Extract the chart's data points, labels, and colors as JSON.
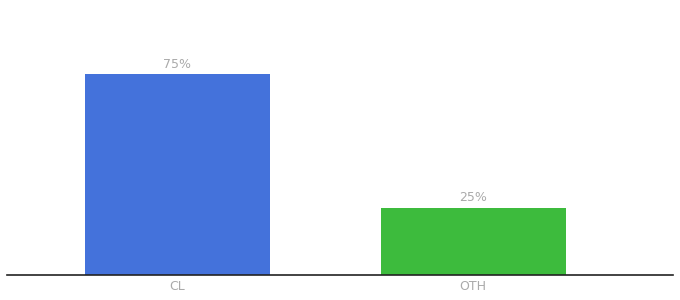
{
  "categories": [
    "CL",
    "OTH"
  ],
  "values": [
    75,
    25
  ],
  "bar_colors": [
    "#4472db",
    "#3dbb3d"
  ],
  "label_texts": [
    "75%",
    "25%"
  ],
  "label_fontsize": 9,
  "label_color": "#aaaaaa",
  "tick_fontsize": 9,
  "tick_color": "#aaaaaa",
  "ylim": [
    0,
    100
  ],
  "bar_width": 0.25,
  "x_positions": [
    0.28,
    0.68
  ],
  "xlim": [
    0.05,
    0.95
  ],
  "background_color": "#ffffff",
  "spine_color": "#222222"
}
